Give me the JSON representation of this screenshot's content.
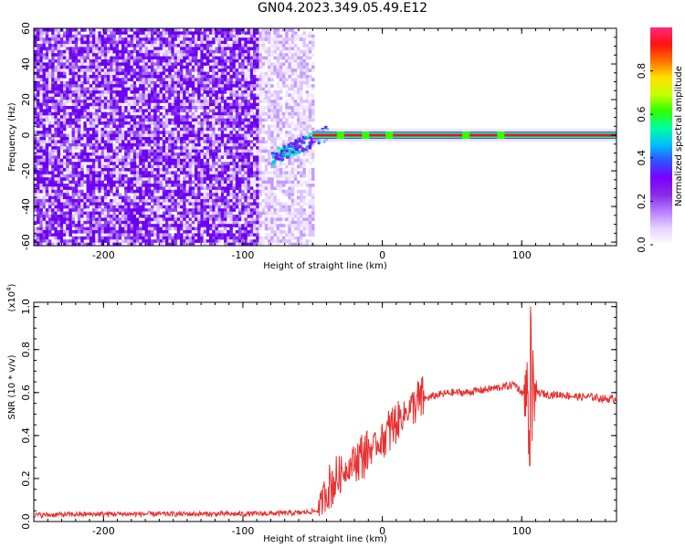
{
  "title": "GN04.2023.349.05.49.E12",
  "chart_data": [
    {
      "type": "heatmap",
      "xlabel": "Height of straight line (km)",
      "ylabel": "Frequency (Hz)",
      "xlim": [
        -250,
        168
      ],
      "ylim": [
        -62,
        60
      ],
      "xticks": [
        -200,
        -100,
        0,
        100
      ],
      "xtick_labels": [
        "-200",
        "-100",
        "0",
        "100"
      ],
      "yticks": [
        -60,
        -40,
        -20,
        0,
        20,
        40,
        60
      ],
      "ytick_labels": [
        "-60",
        "-40",
        "-20",
        "0",
        "20",
        "40",
        "60"
      ],
      "colorbar": {
        "label": "Normalized spectral amplitude",
        "range": [
          0,
          1
        ],
        "ticks": [
          0.0,
          0.2,
          0.4,
          0.6,
          0.8
        ],
        "tick_labels": [
          "0.0",
          "0.2",
          "0.4",
          "0.6",
          "0.8"
        ],
        "colormap": [
          "#ffffff",
          "#e6d2ff",
          "#b57dff",
          "#8a2be2",
          "#7b00ff",
          "#3050ff",
          "#00c0ff",
          "#00ffa0",
          "#30ff00",
          "#c8ff00",
          "#ffe000",
          "#ff7000",
          "#ff1010",
          "#ff2a80"
        ]
      },
      "features": {
        "broadband_noise_x_range": [
          -250,
          -50
        ],
        "tone_frequency_hz": 0,
        "tone_x_range": [
          -50,
          168
        ]
      }
    },
    {
      "type": "line",
      "xlabel": "Height of straight line (km)",
      "ylabel": "SNR (10 * v/v)",
      "y_multiplier": "(x10",
      "y_multiplier_exp": "4",
      "xlim": [
        -250,
        168
      ],
      "ylim": [
        0,
        1.02
      ],
      "xticks": [
        -200,
        -100,
        0,
        100
      ],
      "xtick_labels": [
        "-200",
        "-100",
        "0",
        "100"
      ],
      "yticks": [
        0.0,
        0.2,
        0.4,
        0.6,
        0.8,
        1.0
      ],
      "ytick_labels": [
        "0.0",
        "0.2",
        "0.4",
        "0.6",
        "0.8",
        "1.0"
      ],
      "series": [
        {
          "color": "#e83030",
          "x": [
            -250,
            -200,
            -150,
            -100,
            -60,
            -46,
            -44,
            -40,
            -30,
            -20,
            -10,
            0,
            10,
            20,
            30,
            40,
            50,
            60,
            70,
            80,
            90,
            95,
            100,
            105,
            110,
            120,
            130,
            140,
            150,
            160,
            168
          ],
          "y": [
            0.03,
            0.035,
            0.035,
            0.035,
            0.04,
            0.05,
            0.08,
            0.15,
            0.22,
            0.28,
            0.33,
            0.38,
            0.46,
            0.53,
            0.57,
            0.59,
            0.6,
            0.6,
            0.61,
            0.62,
            0.63,
            0.64,
            0.6,
            0.58,
            0.6,
            0.59,
            0.59,
            0.58,
            0.58,
            0.57,
            0.57
          ]
        }
      ],
      "spike": {
        "x": 106,
        "y_max": 1.0,
        "y_min": 0.26
      }
    }
  ]
}
